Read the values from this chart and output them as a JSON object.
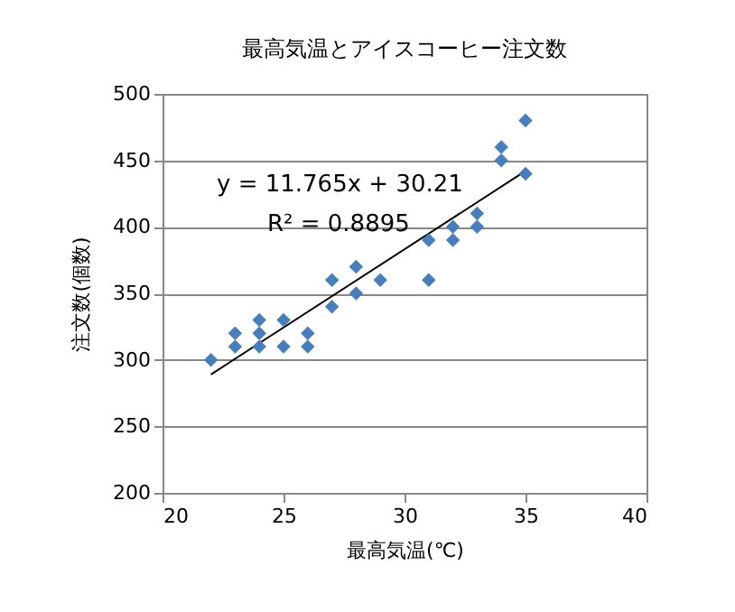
{
  "chart_data": {
    "type": "scatter",
    "title": "最高気温とアイスコーヒー注文数",
    "xlabel": "最高気温(℃)",
    "ylabel": "注文数(個数)",
    "xlim": [
      20,
      40
    ],
    "xticks": [
      20,
      25,
      30,
      35,
      40
    ],
    "ylim": [
      200,
      500
    ],
    "yticks": [
      200,
      250,
      300,
      350,
      400,
      450,
      500
    ],
    "grid": "y",
    "annotations": [
      "y = 11.765x + 30.21",
      "R² = 0.8895"
    ],
    "series": [
      {
        "marker": "diamond",
        "color": "#4a7ebb",
        "x": [
          22,
          23,
          23,
          24,
          24,
          24,
          25,
          25,
          26,
          26,
          27,
          27,
          28,
          28,
          29,
          31,
          31,
          32,
          32,
          33,
          33,
          34,
          34,
          35,
          35
        ],
        "values": [
          300,
          310,
          320,
          310,
          320,
          330,
          310,
          330,
          310,
          320,
          340,
          360,
          350,
          370,
          360,
          360,
          390,
          390,
          400,
          400,
          410,
          450,
          460,
          440,
          480
        ]
      },
      {
        "type": "line",
        "color": "#000000",
        "x": [
          22,
          35
        ],
        "values": [
          289,
          442
        ]
      }
    ]
  }
}
